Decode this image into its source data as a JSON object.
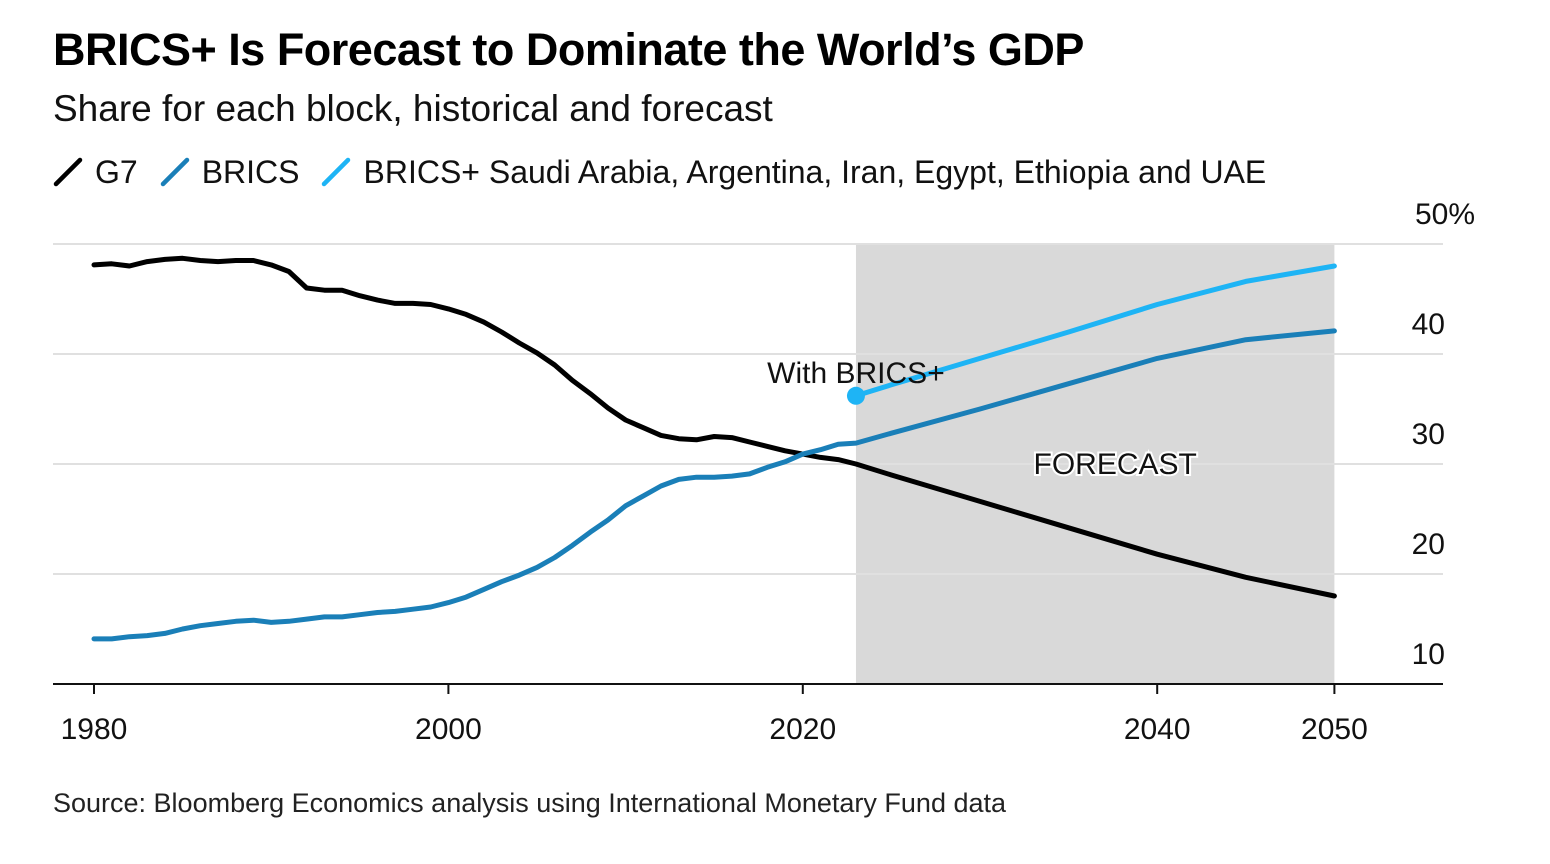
{
  "title": "BRICS+ Is Forecast to Dominate the World’s GDP",
  "subtitle": "Share for each block, historical and forecast",
  "source": "Source: Bloomberg Economics analysis using International Monetary Fund data",
  "colors": {
    "g7": "#000000",
    "brics": "#1a7fb8",
    "brics_plus": "#1eb4f5",
    "forecast_band": "#d9d9d9",
    "grid": "#e0e0e0"
  },
  "chart_data": {
    "type": "line",
    "title": "BRICS+ Is Forecast to Dominate the World’s GDP",
    "subtitle": "Share for each block, historical and forecast",
    "xlabel": "",
    "ylabel": "",
    "xlim": [
      1979,
      2056
    ],
    "ylim": [
      10,
      50
    ],
    "x_ticks": [
      1980,
      2000,
      2020,
      2040,
      2050
    ],
    "y_ticks": [
      10,
      20,
      30,
      40,
      50
    ],
    "y_tick_labels": [
      "10",
      "20",
      "30",
      "40",
      "50%"
    ],
    "y_axis_position": "right",
    "grid": true,
    "legend_position": "top-left",
    "forecast_region": {
      "start": 2023,
      "end": 2050,
      "label": "FORECAST"
    },
    "annotations": [
      {
        "text": "With BRICS+",
        "x": 2023,
        "y": 36.8
      }
    ],
    "series": [
      {
        "name": "G7",
        "color": "#000000",
        "points": [
          [
            1980,
            48.1
          ],
          [
            1981,
            48.2
          ],
          [
            1982,
            48.0
          ],
          [
            1983,
            48.4
          ],
          [
            1984,
            48.6
          ],
          [
            1985,
            48.7
          ],
          [
            1986,
            48.5
          ],
          [
            1987,
            48.4
          ],
          [
            1988,
            48.5
          ],
          [
            1989,
            48.5
          ],
          [
            1990,
            48.1
          ],
          [
            1991,
            47.5
          ],
          [
            1992,
            46.0
          ],
          [
            1993,
            45.8
          ],
          [
            1994,
            45.8
          ],
          [
            1995,
            45.3
          ],
          [
            1996,
            44.9
          ],
          [
            1997,
            44.6
          ],
          [
            1998,
            44.6
          ],
          [
            1999,
            44.5
          ],
          [
            2000,
            44.1
          ],
          [
            2001,
            43.6
          ],
          [
            2002,
            42.9
          ],
          [
            2003,
            42.0
          ],
          [
            2004,
            41.0
          ],
          [
            2005,
            40.1
          ],
          [
            2006,
            39.0
          ],
          [
            2007,
            37.6
          ],
          [
            2008,
            36.4
          ],
          [
            2009,
            35.1
          ],
          [
            2010,
            34.0
          ],
          [
            2011,
            33.3
          ],
          [
            2012,
            32.6
          ],
          [
            2013,
            32.3
          ],
          [
            2014,
            32.2
          ],
          [
            2015,
            32.5
          ],
          [
            2016,
            32.4
          ],
          [
            2017,
            32.0
          ],
          [
            2018,
            31.6
          ],
          [
            2019,
            31.2
          ],
          [
            2020,
            30.9
          ],
          [
            2021,
            30.6
          ],
          [
            2022,
            30.4
          ],
          [
            2023,
            30.0
          ],
          [
            2025,
            29.0
          ],
          [
            2030,
            26.6
          ],
          [
            2035,
            24.2
          ],
          [
            2040,
            21.8
          ],
          [
            2045,
            19.7
          ],
          [
            2050,
            18.0
          ]
        ]
      },
      {
        "name": "BRICS",
        "color": "#1a7fb8",
        "points": [
          [
            1980,
            14.1
          ],
          [
            1981,
            14.1
          ],
          [
            1982,
            14.3
          ],
          [
            1983,
            14.4
          ],
          [
            1984,
            14.6
          ],
          [
            1985,
            15.0
          ],
          [
            1986,
            15.3
          ],
          [
            1987,
            15.5
          ],
          [
            1988,
            15.7
          ],
          [
            1989,
            15.8
          ],
          [
            1990,
            15.6
          ],
          [
            1991,
            15.7
          ],
          [
            1992,
            15.9
          ],
          [
            1993,
            16.1
          ],
          [
            1994,
            16.1
          ],
          [
            1995,
            16.3
          ],
          [
            1996,
            16.5
          ],
          [
            1997,
            16.6
          ],
          [
            1998,
            16.8
          ],
          [
            1999,
            17.0
          ],
          [
            2000,
            17.4
          ],
          [
            2001,
            17.9
          ],
          [
            2002,
            18.6
          ],
          [
            2003,
            19.3
          ],
          [
            2004,
            19.9
          ],
          [
            2005,
            20.6
          ],
          [
            2006,
            21.5
          ],
          [
            2007,
            22.6
          ],
          [
            2008,
            23.8
          ],
          [
            2009,
            24.9
          ],
          [
            2010,
            26.2
          ],
          [
            2011,
            27.1
          ],
          [
            2012,
            28.0
          ],
          [
            2013,
            28.6
          ],
          [
            2014,
            28.8
          ],
          [
            2015,
            28.8
          ],
          [
            2016,
            28.9
          ],
          [
            2017,
            29.1
          ],
          [
            2018,
            29.7
          ],
          [
            2019,
            30.2
          ],
          [
            2020,
            30.9
          ],
          [
            2021,
            31.3
          ],
          [
            2022,
            31.8
          ],
          [
            2023,
            31.9
          ],
          [
            2025,
            32.8
          ],
          [
            2030,
            35.0
          ],
          [
            2035,
            37.3
          ],
          [
            2040,
            39.6
          ],
          [
            2045,
            41.3
          ],
          [
            2050,
            42.1
          ]
        ]
      },
      {
        "name": "BRICS+ Saudi Arabia, Argentina, Iran, Egypt, Ethiopia and UAE",
        "color": "#1eb4f5",
        "points": [
          [
            2023,
            36.2
          ],
          [
            2025,
            37.2
          ],
          [
            2030,
            39.6
          ],
          [
            2035,
            42.0
          ],
          [
            2040,
            44.5
          ],
          [
            2045,
            46.6
          ],
          [
            2050,
            48.0
          ]
        ]
      }
    ]
  }
}
